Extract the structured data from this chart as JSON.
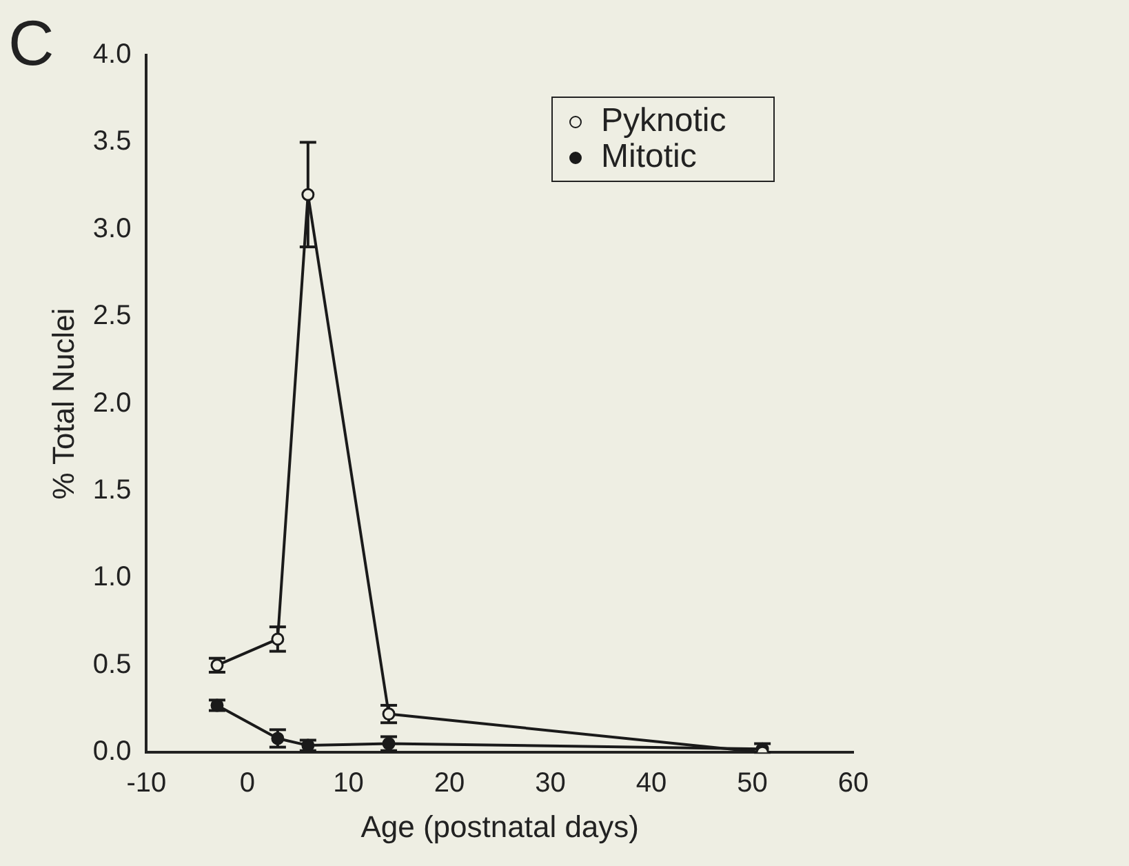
{
  "chart_data": {
    "type": "line",
    "xlabel": "Age (postnatal days)",
    "ylabel": "% Total Nuclei",
    "annotations": [
      "C"
    ],
    "xlim": [
      -10,
      60
    ],
    "xticks": [
      -10,
      0,
      10,
      20,
      30,
      40,
      50,
      60
    ],
    "ylim": [
      0,
      4
    ],
    "yticks": [
      {
        "value": 0,
        "label": "0.0"
      },
      {
        "value": 0.5,
        "label": "0.5"
      },
      {
        "value": 1,
        "label": "1.0"
      },
      {
        "value": 1.5,
        "label": "1.5"
      },
      {
        "value": 2,
        "label": "2.0"
      },
      {
        "value": 2.5,
        "label": "2.5"
      },
      {
        "value": 3,
        "label": "3.0"
      },
      {
        "value": 3.5,
        "label": "3.5"
      },
      {
        "value": 4,
        "label": "4.0"
      }
    ],
    "grid": false,
    "legend": "top right",
    "marker": "circle",
    "line_style": "solid",
    "series": [
      {
        "name": "Pyknotic",
        "color": "#1a1a1a",
        "x": [
          -3,
          3,
          6,
          14,
          51
        ],
        "values": [
          0.5,
          0.65,
          3.2,
          0.22,
          0.0
        ],
        "errors": [
          0.04,
          0.07,
          0.3,
          0.05,
          null
        ]
      },
      {
        "name": "Mitotic",
        "color": "#1a1a1a",
        "x": [
          -3,
          3,
          6,
          14,
          51
        ],
        "values": [
          0.27,
          0.08,
          0.04,
          0.05,
          0.02
        ],
        "errors": [
          0.03,
          0.05,
          0.03,
          0.04,
          [
            0,
            0.05
          ]
        ]
      }
    ]
  }
}
